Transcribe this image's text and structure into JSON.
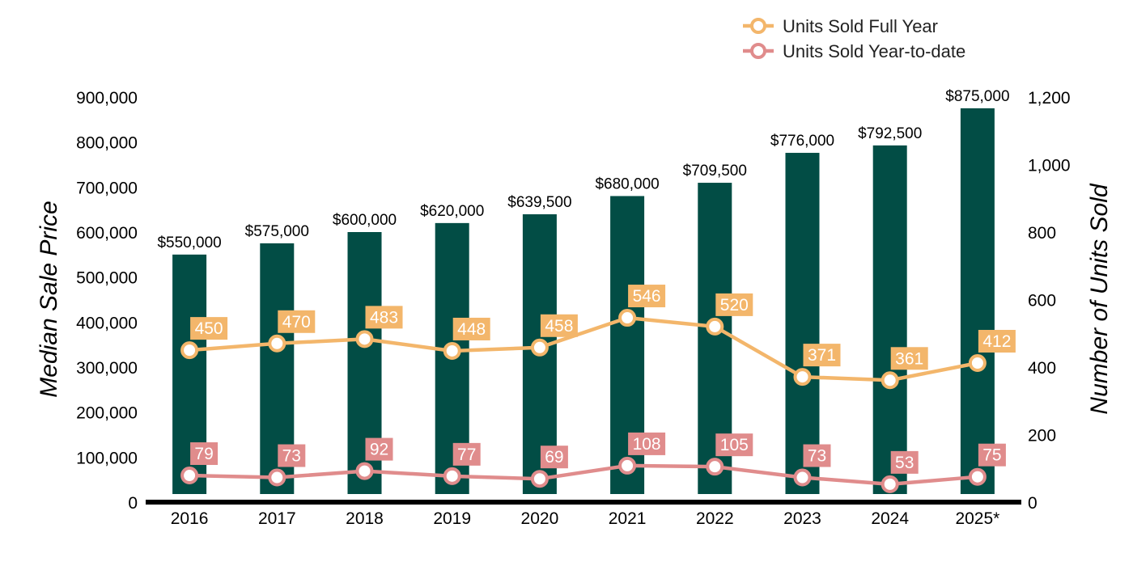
{
  "chart_data": {
    "type": "bar",
    "categories": [
      "2016",
      "2017",
      "2018",
      "2019",
      "2020",
      "2021",
      "2022",
      "2023",
      "2024",
      "2025*"
    ],
    "bar_series": {
      "name": "Median Sale Price",
      "values": [
        550000,
        575000,
        600000,
        620000,
        639500,
        680000,
        709500,
        776000,
        792500,
        875000
      ],
      "labels": [
        "$550,000",
        "$575,000",
        "$600,000",
        "$620,000",
        "$639,500",
        "$680,000",
        "$709,500",
        "$776,000",
        "$792,500",
        "$875,000"
      ],
      "color": "#024d45"
    },
    "line_series": [
      {
        "name": "Units Sold Full Year",
        "values": [
          450,
          470,
          483,
          448,
          458,
          546,
          520,
          371,
          361,
          412
        ],
        "color": "#f3b66b"
      },
      {
        "name": "Units Sold Year-to-date",
        "values": [
          79,
          73,
          92,
          77,
          69,
          108,
          105,
          73,
          53,
          75
        ],
        "color": "#e08c8c"
      }
    ],
    "ylabel": "Median Sale Price",
    "y2label": "Number of Units Sold",
    "ylim": [
      0,
      900000
    ],
    "y2lim": [
      0,
      1200
    ],
    "yticks": [
      "0",
      "100,000",
      "200,000",
      "300,000",
      "400,000",
      "500,000",
      "600,000",
      "700,000",
      "800,000",
      "900,000"
    ],
    "y2ticks": [
      "0",
      "200",
      "400",
      "600",
      "800",
      "1,000",
      "1,200"
    ],
    "legend_position": "top-right",
    "grid": false
  }
}
